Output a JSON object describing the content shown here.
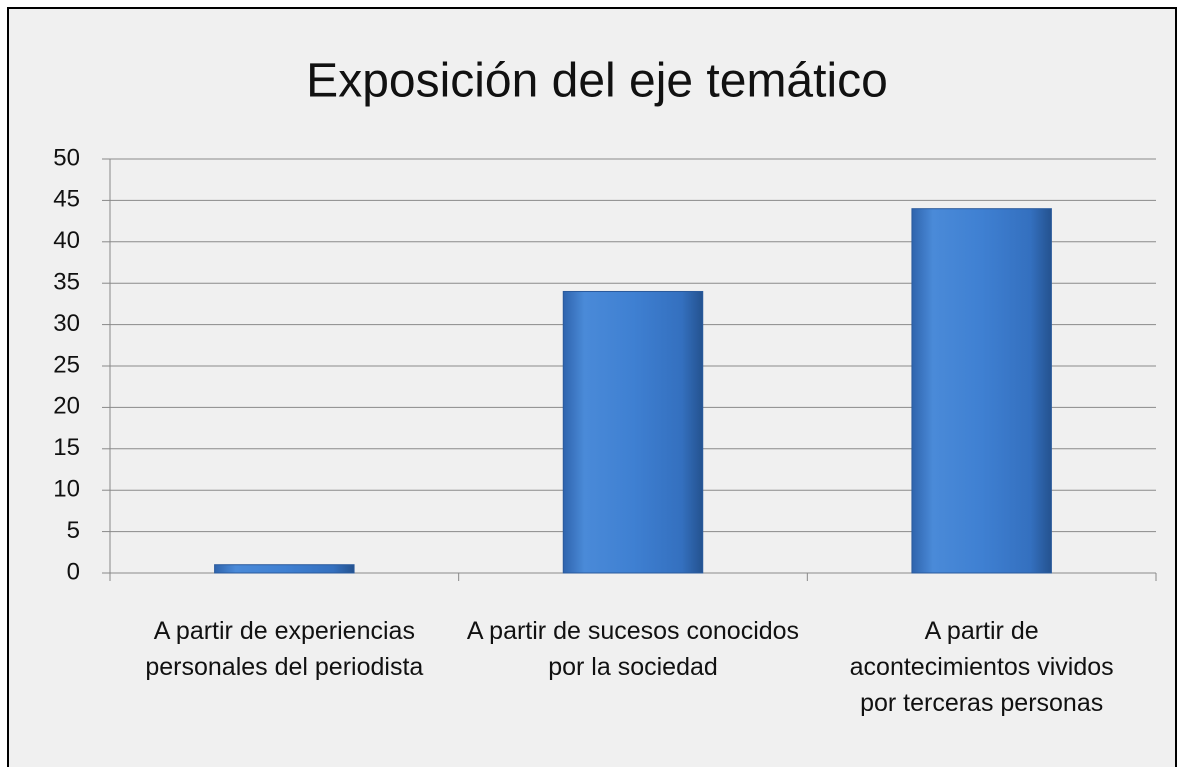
{
  "chart_data": {
    "type": "bar",
    "title": "Exposición del eje temático",
    "categories": [
      "A partir de experiencias personales del periodista",
      "A partir de sucesos conocidos por la sociedad",
      "A partir de acontecimientos vividos por terceras personas"
    ],
    "values": [
      1,
      34,
      44
    ],
    "color": "#3f7fcf",
    "ylim": [
      0,
      50
    ],
    "yticks": [
      0,
      5,
      10,
      15,
      20,
      25,
      30,
      35,
      40,
      45,
      50
    ],
    "grid": true
  }
}
